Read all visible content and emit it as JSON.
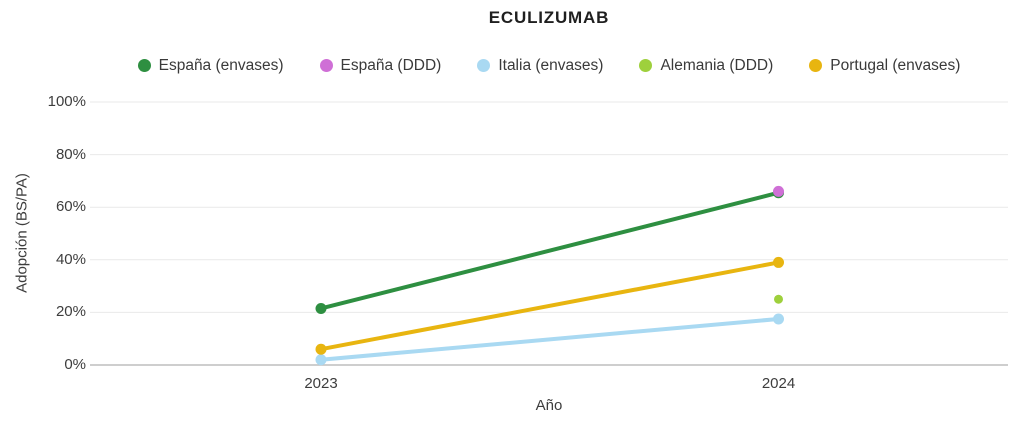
{
  "chart_data": {
    "type": "line",
    "title": "ECULIZUMAB",
    "xlabel": "Año",
    "ylabel": "Adopción (BS/PA)",
    "categories": [
      "2023",
      "2024"
    ],
    "y_ticks": [
      "0%",
      "20%",
      "40%",
      "60%",
      "80%",
      "100%"
    ],
    "ylim": [
      0,
      100
    ],
    "grid": true,
    "legend_position": "top",
    "series": [
      {
        "name": "España (envases)",
        "color": "#2e8f41",
        "values": [
          21.5,
          65.5
        ],
        "marker_radius": 5.5
      },
      {
        "name": "España (DDD)",
        "color": "#cf6fd6",
        "values": [
          null,
          66
        ],
        "marker_radius": 5.5
      },
      {
        "name": "Italia (envases)",
        "color": "#a9d9f2",
        "values": [
          2,
          17.5
        ],
        "marker_radius": 5.5
      },
      {
        "name": "Alemania (DDD)",
        "color": "#9ed03c",
        "values": [
          null,
          25
        ],
        "marker_radius": 4.5
      },
      {
        "name": "Portugal (envases)",
        "color": "#e8b510",
        "values": [
          6,
          39
        ],
        "marker_radius": 5.5
      }
    ]
  }
}
